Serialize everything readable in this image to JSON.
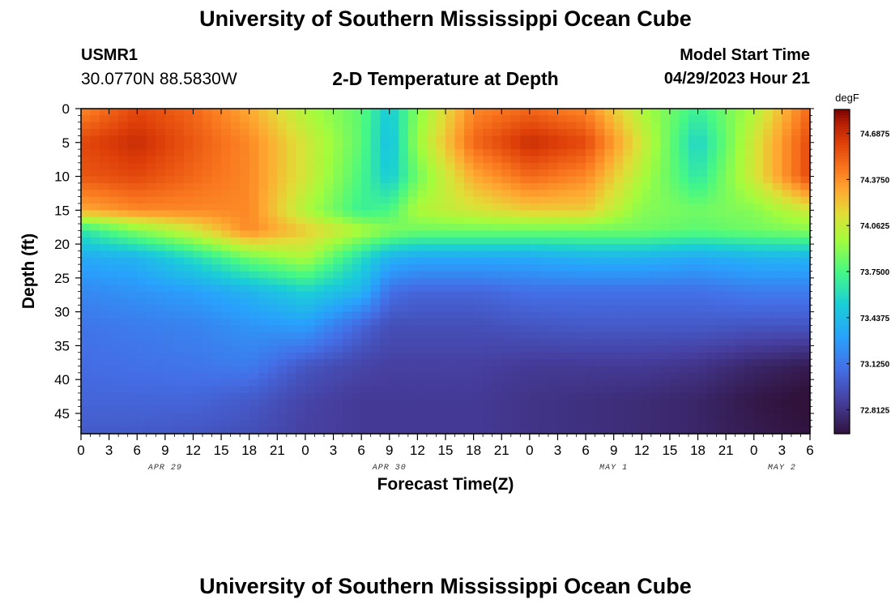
{
  "header": {
    "title": "University of Southern Mississippi Ocean Cube",
    "title_repeat": "University of Southern Mississippi Ocean Cube",
    "station": "USMR1",
    "coords": "30.0770N  88.5830W",
    "subtitle": "2-D Temperature at Depth",
    "model_start_label": "Model Start Time",
    "model_start_value": "04/29/2023 Hour 21"
  },
  "chart_data": {
    "type": "heatmap",
    "title": "2-D Temperature at Depth",
    "xlabel": "Forecast Time(Z)",
    "ylabel": "Depth (ft)",
    "x_tick_labels": [
      "0",
      "3",
      "6",
      "9",
      "12",
      "15",
      "18",
      "21",
      "0",
      "3",
      "6",
      "9",
      "12",
      "15",
      "18",
      "21",
      "0",
      "3",
      "6",
      "9",
      "12",
      "15",
      "18",
      "21",
      "0",
      "3",
      "6"
    ],
    "x_hours": [
      0,
      3,
      6,
      9,
      12,
      15,
      18,
      21,
      24,
      27,
      30,
      33,
      36,
      39,
      42,
      45,
      48,
      51,
      54,
      57,
      60,
      63,
      66,
      69,
      72,
      75,
      78
    ],
    "date_labels": [
      {
        "label": "APR 29",
        "hour": 9
      },
      {
        "label": "APR 30",
        "hour": 33
      },
      {
        "label": "MAY 1",
        "hour": 57
      },
      {
        "label": "MAY 2",
        "hour": 75
      }
    ],
    "xlim": [
      0,
      78
    ],
    "y_ticks": [
      0,
      5,
      10,
      15,
      20,
      25,
      30,
      35,
      40,
      45
    ],
    "ylim": [
      0,
      48
    ],
    "colorbar": {
      "unit": "degF",
      "range": [
        72.65,
        74.85
      ],
      "tick_values": [
        74.6875,
        74.375,
        74.0625,
        73.75,
        73.4375,
        73.125,
        72.8125
      ],
      "tick_labels": [
        "74.6875",
        "74.3750",
        "74.0625",
        "73.7500",
        "73.4375",
        "73.1250",
        "72.8125"
      ]
    },
    "z_hours": [
      0,
      6,
      12,
      18,
      24,
      30,
      33,
      36,
      42,
      48,
      54,
      60,
      66,
      72,
      78
    ],
    "z_depths": [
      0,
      5,
      10,
      15,
      18,
      22,
      27,
      32,
      38,
      43,
      48
    ],
    "z_degF": [
      [
        74.4,
        74.6,
        74.5,
        74.3,
        74.0,
        73.8,
        73.5,
        73.9,
        74.4,
        74.5,
        74.4,
        74.0,
        73.7,
        74.0,
        74.5
      ],
      [
        74.6,
        74.7,
        74.55,
        74.4,
        74.1,
        73.8,
        73.45,
        73.95,
        74.5,
        74.7,
        74.6,
        74.1,
        73.55,
        74.1,
        74.6
      ],
      [
        74.55,
        74.6,
        74.5,
        74.4,
        74.1,
        73.75,
        73.5,
        73.85,
        74.3,
        74.5,
        74.4,
        74.0,
        73.65,
        74.1,
        74.6
      ],
      [
        74.3,
        74.4,
        74.4,
        74.4,
        74.0,
        73.7,
        73.75,
        74.0,
        74.1,
        74.2,
        74.2,
        73.9,
        73.85,
        73.9,
        74.1
      ],
      [
        73.65,
        73.9,
        74.1,
        74.4,
        74.2,
        74.0,
        73.9,
        73.85,
        73.85,
        73.85,
        73.85,
        73.85,
        73.8,
        73.85,
        73.9
      ],
      [
        73.35,
        73.4,
        73.6,
        73.85,
        74.0,
        73.6,
        73.4,
        73.35,
        73.35,
        73.35,
        73.4,
        73.4,
        73.35,
        73.4,
        73.4
      ],
      [
        73.2,
        73.25,
        73.3,
        73.4,
        73.55,
        73.4,
        73.1,
        73.05,
        73.05,
        73.1,
        73.1,
        73.1,
        73.1,
        73.15,
        73.15
      ],
      [
        73.12,
        73.15,
        73.18,
        73.25,
        73.3,
        73.05,
        72.95,
        72.95,
        72.95,
        72.98,
        73.0,
        73.0,
        73.0,
        72.98,
        72.98
      ],
      [
        73.08,
        73.1,
        73.12,
        73.15,
        72.98,
        72.9,
        72.88,
        72.88,
        72.88,
        72.85,
        72.85,
        72.85,
        72.82,
        72.75,
        72.7
      ],
      [
        73.05,
        73.05,
        73.05,
        73.0,
        72.9,
        72.85,
        72.85,
        72.85,
        72.85,
        72.82,
        72.8,
        72.78,
        72.75,
        72.68,
        72.63
      ],
      [
        73.0,
        73.0,
        72.98,
        72.95,
        72.88,
        72.85,
        72.85,
        72.85,
        72.85,
        72.82,
        72.8,
        72.78,
        72.75,
        72.7,
        72.66
      ]
    ]
  }
}
